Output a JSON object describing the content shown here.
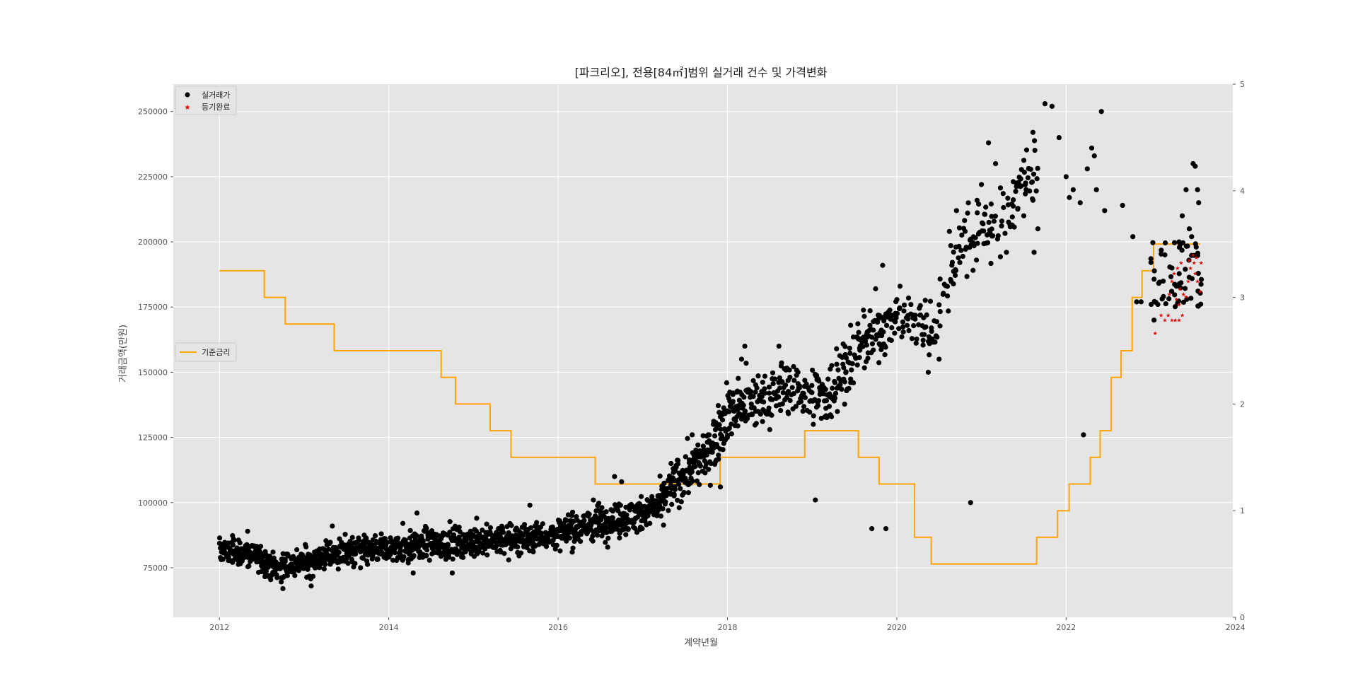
{
  "chart_data": {
    "type": "scatter",
    "title": "[파크리오], 전용[84㎡]범위 실거래 건수 및 가격변화",
    "xlabel": "계약년월",
    "ylabel": "거래금액(만원)",
    "x_type": "date",
    "xlim": [
      "2011-06-15",
      "2023-12-20"
    ],
    "ylim": [
      56000,
      260500
    ],
    "y2lim": [
      0,
      5
    ],
    "x_ticks": [
      "2012",
      "2014",
      "2016",
      "2018",
      "2020",
      "2022",
      "2024"
    ],
    "y_ticks": [
      75000,
      100000,
      125000,
      150000,
      175000,
      200000,
      225000,
      250000
    ],
    "y2_ticks": [
      0,
      1,
      2,
      3,
      4,
      5
    ],
    "grid": true,
    "legend_top": {
      "placement": "top-left",
      "entries": [
        {
          "label": "실거래가",
          "color": "#000000",
          "marker": "circle"
        },
        {
          "label": "등기완료",
          "color": "#dd0000",
          "marker": "star"
        }
      ]
    },
    "legend_right_axis": {
      "placement": "center-left",
      "entries": [
        {
          "label": "기준금리",
          "color": "#ffa500",
          "marker": "line"
        }
      ]
    },
    "series": [
      {
        "name": "실거래가",
        "axis": "left",
        "color": "#000000",
        "anchors": [
          [
            "2012-01",
            82000,
            4000
          ],
          [
            "2012-06",
            80000,
            5000
          ],
          [
            "2012-09",
            75000,
            4500
          ],
          [
            "2013-01",
            77000,
            5000
          ],
          [
            "2013-06",
            81000,
            5000
          ],
          [
            "2014-01",
            82000,
            5000
          ],
          [
            "2014-06",
            84000,
            5000
          ],
          [
            "2015-01",
            85000,
            5000
          ],
          [
            "2015-06",
            86000,
            5000
          ],
          [
            "2016-01",
            88000,
            5000
          ],
          [
            "2016-06",
            92000,
            6000
          ],
          [
            "2016-12",
            95000,
            6000
          ],
          [
            "2017-03",
            98000,
            6000
          ],
          [
            "2017-06",
            108000,
            8000
          ],
          [
            "2017-10",
            118000,
            8000
          ],
          [
            "2018-01",
            135000,
            10000
          ],
          [
            "2018-06",
            140000,
            10000
          ],
          [
            "2018-10",
            145000,
            10000
          ],
          [
            "2019-03",
            140000,
            10000
          ],
          [
            "2019-08",
            160000,
            10000
          ],
          [
            "2020-01",
            172000,
            8000
          ],
          [
            "2020-06",
            165000,
            10000
          ],
          [
            "2020-10",
            200000,
            10000
          ],
          [
            "2021-03",
            205000,
            12000
          ],
          [
            "2021-09",
            230000,
            12000
          ]
        ],
        "points": [
          [
            "2012-01-10",
            81000
          ],
          [
            "2012-03-01",
            86000
          ],
          [
            "2012-05-01",
            89000
          ],
          [
            "2012-08-01",
            72000
          ],
          [
            "2012-10-01",
            67000
          ],
          [
            "2013-02-01",
            68000
          ],
          [
            "2013-05-01",
            91000
          ],
          [
            "2013-09-01",
            75000
          ],
          [
            "2014-03-01",
            92000
          ],
          [
            "2014-05-01",
            96000
          ],
          [
            "2014-04-15",
            73000
          ],
          [
            "2014-10-01",
            73000
          ],
          [
            "2015-01-15",
            94000
          ],
          [
            "2015-06-01",
            78000
          ],
          [
            "2015-09-01",
            99000
          ],
          [
            "2016-03-01",
            81000
          ],
          [
            "2016-06-01",
            101000
          ],
          [
            "2016-09-01",
            110000
          ],
          [
            "2016-10-01",
            108000
          ],
          [
            "2017-02-01",
            92000
          ],
          [
            "2017-05-01",
            115000
          ],
          [
            "2017-08-01",
            126000
          ],
          [
            "2017-11-01",
            130000
          ],
          [
            "2017-12-01",
            106000
          ],
          [
            "2018-03-01",
            155000
          ],
          [
            "2018-03-15",
            160000
          ],
          [
            "2018-08-10",
            160000
          ],
          [
            "2018-11-01",
            150000
          ],
          [
            "2018-05-01",
            135000
          ],
          [
            "2018-07-01",
            128000
          ],
          [
            "2019-04-15",
            159000
          ],
          [
            "2019-06-15",
            168000
          ],
          [
            "2019-10-01",
            182000
          ],
          [
            "2019-11-01",
            191000
          ],
          [
            "2020-01-15",
            183000
          ],
          [
            "2020-03-01",
            176000
          ],
          [
            "2020-07-01",
            155000
          ],
          [
            "2020-05-15",
            150000
          ],
          [
            "2020-08-15",
            204000
          ],
          [
            "2020-09-15",
            212000
          ],
          [
            "2021-01-01",
            222000
          ],
          [
            "2021-02-01",
            238000
          ],
          [
            "2021-03-01",
            230000
          ],
          [
            "2021-07-01",
            210000
          ],
          [
            "2021-08-10",
            242000
          ],
          [
            "2021-10-01",
            253000
          ],
          [
            "2021-11-01",
            252000
          ],
          [
            "2021-12-01",
            240000
          ],
          [
            "2021-09-01",
            205000
          ],
          [
            "2021-08-15",
            196000
          ],
          [
            "2019-01-15",
            101000
          ],
          [
            "2019-09-15",
            90000
          ],
          [
            "2019-11-15",
            90000
          ],
          [
            "2020-11-15",
            100000
          ],
          [
            "2022-03-15",
            126000
          ],
          [
            "2022-01-01",
            225000
          ],
          [
            "2022-01-15",
            217000
          ],
          [
            "2022-02-01",
            220000
          ],
          [
            "2022-03-01",
            215000
          ],
          [
            "2022-04-01",
            228000
          ],
          [
            "2022-04-20",
            236000
          ],
          [
            "2022-05-01",
            233000
          ],
          [
            "2022-05-10",
            220000
          ],
          [
            "2022-06-01",
            250000
          ],
          [
            "2022-06-15",
            212000
          ],
          [
            "2022-09-01",
            214000
          ],
          [
            "2022-10-15",
            202000
          ],
          [
            "2022-11-01",
            177000
          ],
          [
            "2022-11-20",
            177000
          ],
          [
            "2023-01-15",
            170000
          ],
          [
            "2023-02-01",
            176000
          ],
          [
            "2023-03-01",
            195000
          ],
          [
            "2023-04-01",
            190000
          ],
          [
            "2023-05-01",
            200000
          ],
          [
            "2023-05-15",
            210000
          ],
          [
            "2023-06-01",
            220000
          ],
          [
            "2023-06-15",
            205000
          ],
          [
            "2023-07-01",
            230000
          ],
          [
            "2023-07-10",
            229000
          ],
          [
            "2023-07-20",
            220000
          ],
          [
            "2023-07-25",
            215000
          ],
          [
            "2023-06-25",
            202000
          ]
        ]
      },
      {
        "name": "등기완료",
        "axis": "left",
        "color": "#dd0000",
        "points": [
          [
            "2023-01-20",
            165000
          ],
          [
            "2023-02-15",
            172000
          ],
          [
            "2023-03-01",
            170000
          ],
          [
            "2023-03-15",
            172000
          ],
          [
            "2023-04-01",
            170000
          ],
          [
            "2023-04-15",
            170000
          ],
          [
            "2023-05-01",
            170000
          ],
          [
            "2023-05-15",
            172000
          ],
          [
            "2023-03-20",
            180000
          ],
          [
            "2023-04-01",
            185000
          ],
          [
            "2023-04-10",
            188000
          ],
          [
            "2023-04-20",
            178000
          ],
          [
            "2023-05-01",
            176000
          ],
          [
            "2023-05-05",
            182000
          ],
          [
            "2023-05-20",
            180000
          ],
          [
            "2023-06-01",
            179000
          ],
          [
            "2023-06-10",
            185000
          ],
          [
            "2023-06-20",
            190000
          ],
          [
            "2023-07-01",
            195000
          ],
          [
            "2023-07-10",
            188000
          ],
          [
            "2023-07-20",
            185000
          ],
          [
            "2023-08-01",
            181000
          ],
          [
            "2023-04-25",
            190000
          ],
          [
            "2023-05-10",
            192000
          ],
          [
            "2023-06-15",
            193000
          ],
          [
            "2023-07-05",
            192000
          ],
          [
            "2023-07-15",
            194000
          ],
          [
            "2023-08-05",
            192000
          ]
        ]
      },
      {
        "name": "기준금리",
        "axis": "right",
        "color": "#ffa500",
        "type": "step",
        "points": [
          [
            "2012-01-01",
            3.25
          ],
          [
            "2012-07-12",
            3.0
          ],
          [
            "2012-10-11",
            2.75
          ],
          [
            "2013-05-09",
            2.5
          ],
          [
            "2014-08-14",
            2.25
          ],
          [
            "2014-10-15",
            2.0
          ],
          [
            "2015-03-12",
            1.75
          ],
          [
            "2015-06-11",
            1.5
          ],
          [
            "2016-06-09",
            1.25
          ],
          [
            "2017-11-30",
            1.5
          ],
          [
            "2018-11-30",
            1.75
          ],
          [
            "2019-07-18",
            1.5
          ],
          [
            "2019-10-16",
            1.25
          ],
          [
            "2020-03-17",
            0.75
          ],
          [
            "2020-05-28",
            0.5
          ],
          [
            "2021-08-26",
            0.75
          ],
          [
            "2021-11-25",
            1.0
          ],
          [
            "2022-01-14",
            1.25
          ],
          [
            "2022-04-14",
            1.5
          ],
          [
            "2022-05-26",
            1.75
          ],
          [
            "2022-07-13",
            2.25
          ],
          [
            "2022-08-25",
            2.5
          ],
          [
            "2022-10-12",
            3.0
          ],
          [
            "2022-11-24",
            3.25
          ],
          [
            "2023-01-13",
            3.5
          ],
          [
            "2023-08-01",
            3.5
          ]
        ]
      }
    ]
  }
}
